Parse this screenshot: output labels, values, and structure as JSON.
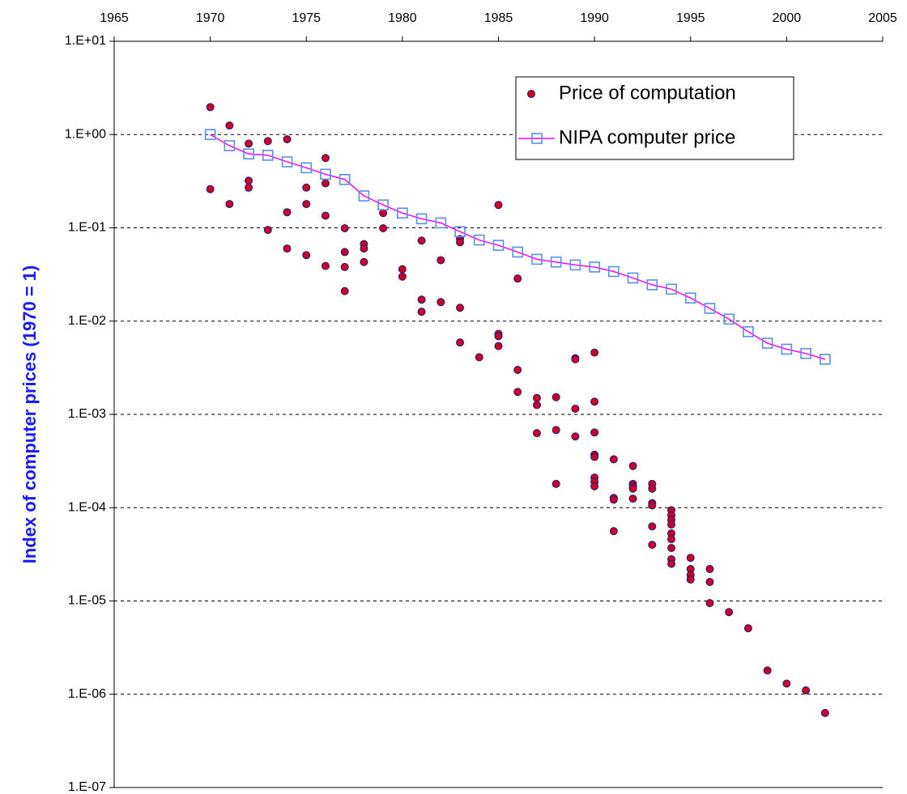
{
  "chart_data": {
    "type": "scatter",
    "y_label": "Index of computer prices (1970 = 1)",
    "xlim": [
      1965,
      2005
    ],
    "xticks": [
      1965,
      1970,
      1975,
      1980,
      1985,
      1990,
      1995,
      2000,
      2005
    ],
    "ylim": [
      1e-07,
      10
    ],
    "ylog": true,
    "grid": true,
    "legend": "upper right",
    "yticks": [
      {
        "value": 10,
        "label": "1.E+01"
      },
      {
        "value": 1,
        "label": "1.E+00"
      },
      {
        "value": 0.1,
        "label": "1.E-01"
      },
      {
        "value": 0.01,
        "label": "1.E-02"
      },
      {
        "value": 0.001,
        "label": "1.E-03"
      },
      {
        "value": 0.0001,
        "label": "1.E-04"
      },
      {
        "value": 1e-05,
        "label": "1.E-05"
      },
      {
        "value": 1e-06,
        "label": "1.E-06"
      },
      {
        "value": 1e-07,
        "label": "1.E-07"
      }
    ],
    "series": [
      {
        "name": "Price of computation",
        "type": "scatter",
        "color": "#cc0022",
        "edge_color": "#1a1a80",
        "x": [
          1970,
          1970,
          1971,
          1971,
          1972,
          1972,
          1972,
          1973,
          1973,
          1974,
          1974,
          1974,
          1975,
          1975,
          1975,
          1976,
          1976,
          1976,
          1976,
          1977,
          1977,
          1977,
          1977,
          1978,
          1978,
          1978,
          1979,
          1979,
          1980,
          1980,
          1981,
          1981,
          1981,
          1982,
          1982,
          1983,
          1983,
          1983,
          1983,
          1984,
          1985,
          1985,
          1985,
          1985,
          1986,
          1986,
          1986,
          1987,
          1987,
          1987,
          1988,
          1988,
          1988,
          1989,
          1989,
          1989,
          1989,
          1990,
          1990,
          1990,
          1990,
          1990,
          1990,
          1990,
          1990,
          1991,
          1991,
          1991,
          1991,
          1992,
          1992,
          1992,
          1992,
          1992,
          1993,
          1993,
          1993,
          1993,
          1993,
          1993,
          1994,
          1994,
          1994,
          1994,
          1994,
          1994,
          1994,
          1994,
          1994,
          1995,
          1995,
          1995,
          1995,
          1996,
          1996,
          1996,
          1997,
          1998,
          1999,
          2000,
          2001,
          2002
        ],
        "values": [
          1.97,
          0.26,
          1.25,
          0.18,
          0.8,
          0.32,
          0.27,
          0.85,
          0.095,
          0.89,
          0.147,
          0.06,
          0.27,
          0.18,
          0.051,
          0.56,
          0.3,
          0.135,
          0.039,
          0.099,
          0.055,
          0.038,
          0.021,
          0.067,
          0.06,
          0.043,
          0.144,
          0.099,
          0.036,
          0.03,
          0.073,
          0.017,
          0.0126,
          0.045,
          0.016,
          0.076,
          0.07,
          0.0139,
          0.0059,
          0.0041,
          0.176,
          0.0073,
          0.0069,
          0.0054,
          0.0286,
          0.003,
          0.00174,
          0.0015,
          0.00126,
          0.00063,
          0.00153,
          0.00068,
          0.00018,
          0.004,
          0.0039,
          0.00115,
          0.00058,
          0.0046,
          0.00137,
          0.00064,
          0.00037,
          0.00035,
          0.00021,
          0.00019,
          0.00017,
          0.00033,
          0.000127,
          0.000122,
          5.6e-05,
          0.00028,
          0.00018,
          0.00017,
          0.00016,
          0.000125,
          0.00018,
          0.00016,
          0.000112,
          0.000106,
          6.3e-05,
          4e-05,
          9.4e-05,
          8.3e-05,
          7.4e-05,
          6.6e-05,
          5.3e-05,
          4.6e-05,
          3.7e-05,
          2.8e-05,
          2.5e-05,
          2.9e-05,
          2.2e-05,
          1.9e-05,
          1.7e-05,
          2.2e-05,
          1.6e-05,
          9.5e-06,
          7.6e-06,
          5.1e-06,
          1.8e-06,
          1.3e-06,
          1.1e-06,
          6.3e-07
        ]
      },
      {
        "name": "NIPA computer price",
        "type": "line",
        "color": "#ff00ff",
        "marker_color": "#5b8fe8",
        "x": [
          1970,
          1971,
          1972,
          1973,
          1974,
          1975,
          1976,
          1977,
          1978,
          1979,
          1980,
          1981,
          1982,
          1983,
          1984,
          1985,
          1986,
          1987,
          1988,
          1989,
          1990,
          1991,
          1992,
          1993,
          1994,
          1995,
          1996,
          1997,
          1998,
          1999,
          2000,
          2001,
          2002
        ],
        "values": [
          1,
          0.76,
          0.62,
          0.6,
          0.51,
          0.44,
          0.375,
          0.33,
          0.22,
          0.176,
          0.144,
          0.125,
          0.113,
          0.091,
          0.074,
          0.065,
          0.055,
          0.046,
          0.043,
          0.04,
          0.038,
          0.034,
          0.029,
          0.0245,
          0.022,
          0.0177,
          0.0137,
          0.0105,
          0.0077,
          0.0058,
          0.005,
          0.0045,
          0.0039
        ]
      }
    ]
  }
}
